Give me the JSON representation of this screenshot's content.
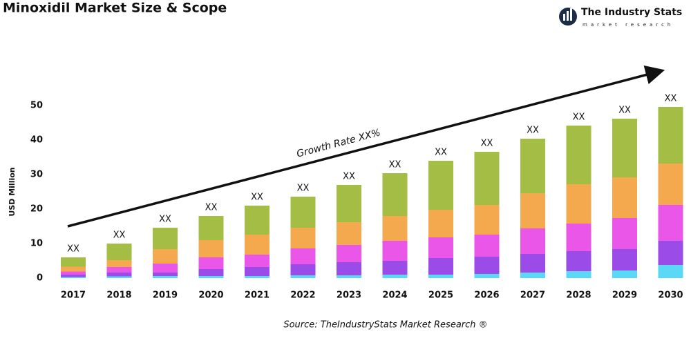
{
  "chart_data": {
    "type": "stacked_bar",
    "title": "Minoxidil Market Size & Scope",
    "brand": "The Industry Stats",
    "brand_tagline": "market research",
    "y_label": "USD Million",
    "annotation": "Growth Rate XX%",
    "source": "Source: TheIndustryStats Market Research ®",
    "categories": [
      "2017",
      "2018",
      "2019",
      "2020",
      "2021",
      "2022",
      "2023",
      "2024",
      "2025",
      "2026",
      "2027",
      "2028",
      "2029",
      "2030"
    ],
    "total_labels": [
      "XX",
      "XX",
      "XX",
      "XX",
      "XX",
      "XX",
      "XX",
      "XX",
      "XX",
      "XX",
      "XX",
      "XX",
      "XX",
      "XX"
    ],
    "series": [
      {
        "color": "#5ad8f5",
        "values": [
          0.3,
          0.5,
          0.6,
          0.6,
          0.6,
          0.8,
          0.8,
          1,
          1,
          1.2,
          1.6,
          2,
          2.2,
          3.8
        ]
      },
      {
        "color": "#9b4be8",
        "values": [
          0.7,
          1.1,
          1.0,
          2,
          2.6,
          3.2,
          3.8,
          4,
          4.8,
          5,
          5.4,
          5.8,
          6.2,
          7
        ]
      },
      {
        "color": "#e956e8",
        "values": [
          0.9,
          1.6,
          2.6,
          3.4,
          3.6,
          4.6,
          5,
          5.8,
          6,
          6.4,
          7.4,
          8,
          9,
          10.4
        ]
      },
      {
        "color": "#f4a94e",
        "values": [
          1.4,
          2,
          4.2,
          5,
          5.8,
          6,
          6.6,
          7.2,
          8,
          8.6,
          10.2,
          11.4,
          11.8,
          12
        ]
      },
      {
        "color": "#a3bd45",
        "values": [
          2.7,
          4.8,
          6.2,
          7,
          8.4,
          9,
          10.8,
          12.4,
          14.2,
          15.4,
          15.8,
          17,
          17,
          16.4
        ]
      }
    ],
    "ylim": [
      0,
      50
    ],
    "yticks": [
      0,
      10,
      20,
      30,
      40,
      50
    ],
    "grid": false
  }
}
